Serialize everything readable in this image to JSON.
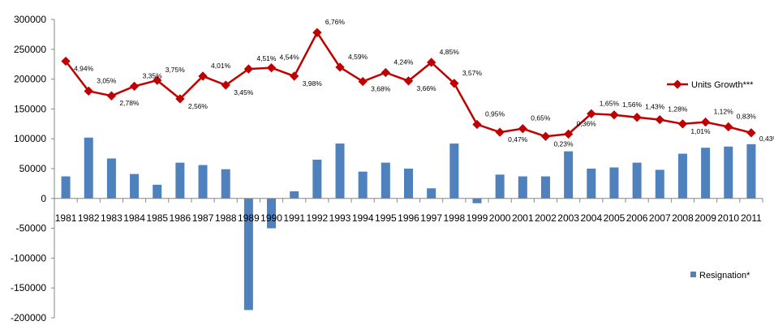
{
  "chart_data": {
    "type": "bar+line",
    "categories": [
      "1981",
      "1982",
      "1983",
      "1984",
      "1985",
      "1986",
      "1987",
      "1988",
      "1989",
      "1990",
      "1991",
      "1992",
      "1993",
      "1994",
      "1995",
      "1996",
      "1997",
      "1998",
      "1999",
      "2000",
      "2001",
      "2002",
      "2003",
      "2004",
      "2005",
      "2006",
      "2007",
      "2008",
      "2009",
      "2010",
      "2011"
    ],
    "ylim": [
      -200000,
      300000
    ],
    "yticks": [
      -200000,
      -150000,
      -100000,
      -50000,
      0,
      50000,
      100000,
      150000,
      200000,
      250000,
      300000
    ],
    "ytick_labels": [
      "-200000",
      "-150000",
      "-100000",
      "-50000",
      "0",
      "50000",
      "100000",
      "150000",
      "200000",
      "250000",
      "300000"
    ],
    "grid": false,
    "series": [
      {
        "name": "Resignation*",
        "kind": "bar",
        "color": "#4F81BD",
        "legend_position": "bottom-right",
        "values": [
          37000,
          102000,
          67000,
          41000,
          23000,
          60000,
          56000,
          49000,
          -187000,
          -50000,
          12000,
          65000,
          92000,
          45000,
          60000,
          50000,
          17000,
          92000,
          -8000,
          40000,
          37000,
          37000,
          79000,
          50000,
          52000,
          60000,
          48000,
          75000,
          85000,
          87000,
          91000
        ]
      },
      {
        "name": "Units Growth***",
        "kind": "line",
        "color": "#C00000",
        "legend_position": "right",
        "values": [
          230000,
          180000,
          172000,
          188000,
          198000,
          167000,
          205000,
          190000,
          217000,
          219000,
          205000,
          278000,
          220000,
          196000,
          211000,
          197000,
          228000,
          193000,
          124000,
          111000,
          117000,
          104000,
          108000,
          142000,
          140000,
          136000,
          132000,
          125000,
          128000,
          120000,
          110000
        ],
        "labels": [
          "4,94%",
          "3,05%",
          "2,78%",
          "3,35%",
          "3,75%",
          "2,56%",
          "4,01%",
          "3,45%",
          "4,51%",
          "4,54%",
          "3,98%",
          "6,76%",
          "4,59%",
          "3,68%",
          "4,24%",
          "3,66%",
          "4,85%",
          "3,57%",
          "0,95%",
          "0,47%",
          "0,65%",
          "0,23%",
          "0,36%",
          "1,65%",
          "1,56%",
          "1,43%",
          "1,28%",
          "1,01%",
          "1,12%",
          "0,83%",
          "0,43%"
        ]
      }
    ]
  }
}
